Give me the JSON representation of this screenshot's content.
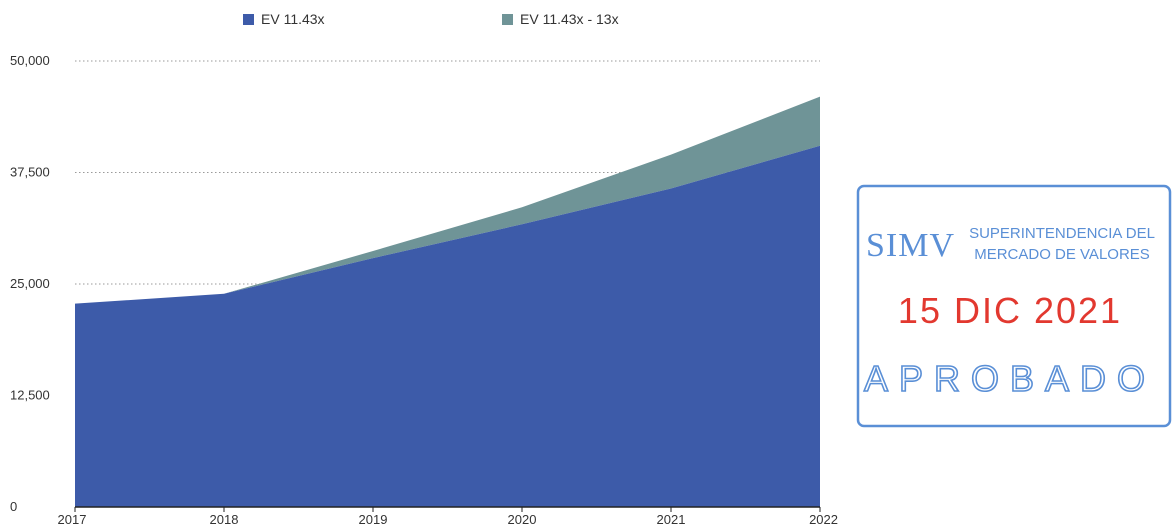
{
  "chart_data": {
    "type": "area",
    "stacked": true,
    "x": [
      "2017",
      "2018",
      "2019",
      "2020",
      "2021",
      "2022"
    ],
    "series": [
      {
        "name": "EV 11.43x",
        "values": [
          22800,
          23900,
          27900,
          31700,
          35700,
          40500
        ],
        "color": "#3d5ba9"
      },
      {
        "name": "EV 11.43x - 13x",
        "values": [
          0,
          0,
          800,
          1900,
          3800,
          5500
        ],
        "color": "#6f9497"
      }
    ],
    "ylim": [
      0,
      50000
    ],
    "yticks": [
      "0",
      "12,500",
      "25,000",
      "37,500",
      "50,000"
    ],
    "ytick_values": [
      0,
      12500,
      25000,
      37500,
      50000
    ],
    "grid": true,
    "legend_position": "top"
  },
  "stamp": {
    "logo": "SIMV",
    "org_line1": "SUPERINTENDENCIA DEL",
    "org_line2": "MERCADO DE VALORES",
    "date": "15 DIC 2021",
    "status": "APROBADO",
    "border_color": "#5a8fd6",
    "date_color": "#e2382f"
  }
}
